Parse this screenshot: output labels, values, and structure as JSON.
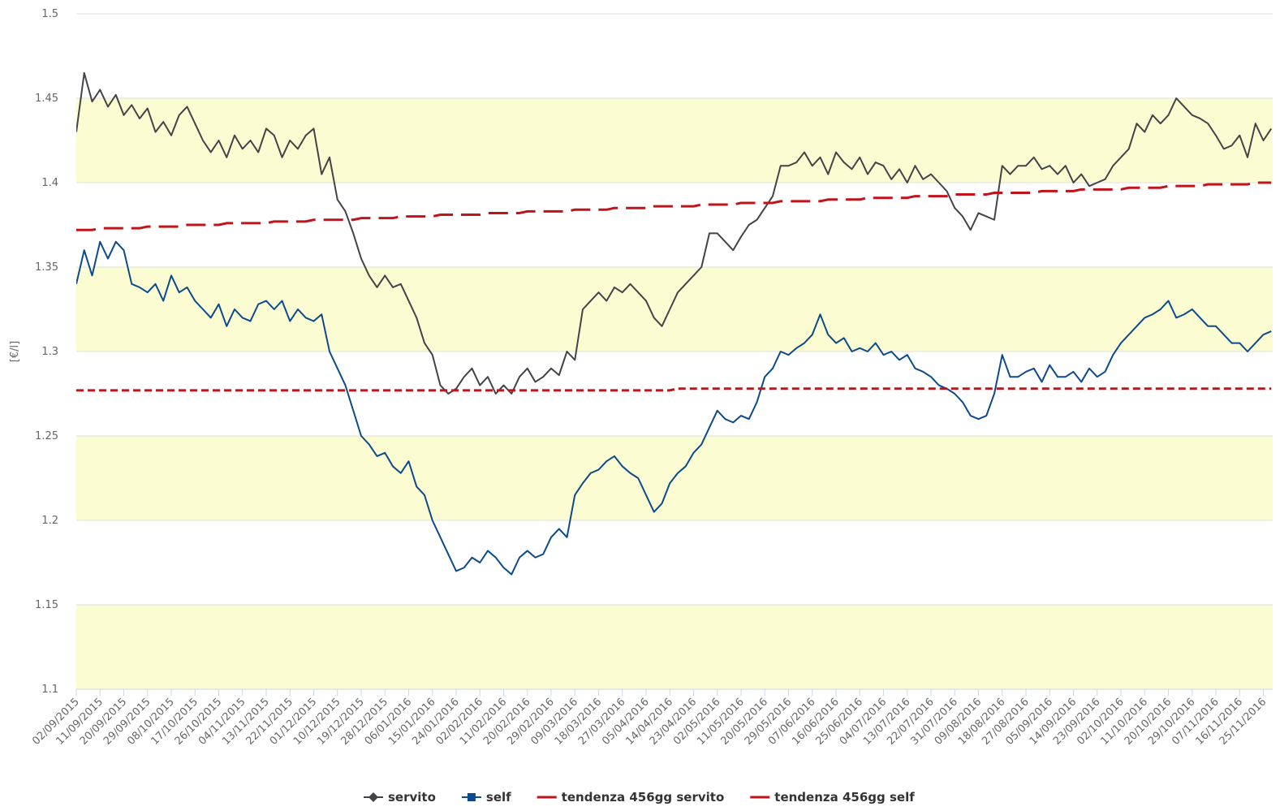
{
  "chart_data": {
    "type": "line",
    "y_label": "[€/l]",
    "ylim": [
      1.1,
      1.5
    ],
    "yticks": [
      1.1,
      1.15,
      1.2,
      1.25,
      1.3,
      1.35,
      1.4,
      1.45,
      1.5
    ],
    "grid": true,
    "alternate_band_color": "#fcfcd2",
    "legend": "bottom",
    "categories": [
      "02/09/2015",
      null,
      null,
      "11/09/2015",
      null,
      null,
      "20/09/2015",
      null,
      null,
      "29/09/2015",
      null,
      null,
      "08/10/2015",
      null,
      null,
      "17/10/2015",
      null,
      null,
      "26/10/2015",
      null,
      null,
      "04/11/2015",
      null,
      null,
      "13/11/2015",
      null,
      null,
      "22/11/2015",
      null,
      null,
      "01/12/2015",
      null,
      null,
      "10/12/2015",
      null,
      null,
      "19/12/2015",
      null,
      null,
      "28/12/2015",
      null,
      null,
      "06/01/2016",
      null,
      null,
      "15/01/2016",
      null,
      null,
      "24/01/2016",
      null,
      null,
      "02/02/2016",
      null,
      null,
      "11/02/2016",
      null,
      null,
      "20/02/2016",
      null,
      null,
      "29/02/2016",
      null,
      null,
      "09/03/2016",
      null,
      null,
      "18/03/2016",
      null,
      null,
      "27/03/2016",
      null,
      null,
      "05/04/2016",
      null,
      null,
      "14/04/2016",
      null,
      null,
      "23/04/2016",
      null,
      null,
      "02/05/2016",
      null,
      null,
      "11/05/2016",
      null,
      null,
      "20/05/2016",
      null,
      null,
      "29/05/2016",
      null,
      null,
      "07/06/2016",
      null,
      null,
      "16/06/2016",
      null,
      null,
      "25/06/2016",
      null,
      null,
      "04/07/2016",
      null,
      null,
      "13/07/2016",
      null,
      null,
      "22/07/2016",
      null,
      null,
      "31/07/2016",
      null,
      null,
      "09/08/2016",
      null,
      null,
      "18/08/2016",
      null,
      null,
      "27/08/2016",
      null,
      null,
      "05/09/2016",
      null,
      null,
      "14/09/2016",
      null,
      null,
      "23/09/2016",
      null,
      null,
      "02/10/2016",
      null,
      null,
      "11/10/2016",
      null,
      null,
      "20/10/2016",
      null,
      null,
      "29/10/2016",
      null,
      null,
      "07/11/2016",
      null,
      null,
      "16/11/2016",
      null,
      null,
      "25/11/2016",
      null
    ],
    "series": [
      {
        "name": "servito",
        "color": "#434348",
        "marker": "diamond",
        "dash": "solid",
        "values": [
          1.43,
          1.465,
          1.448,
          1.455,
          1.445,
          1.452,
          1.44,
          1.446,
          1.438,
          1.444,
          1.43,
          1.436,
          1.428,
          1.44,
          1.445,
          1.435,
          1.425,
          1.418,
          1.425,
          1.415,
          1.428,
          1.42,
          1.425,
          1.418,
          1.432,
          1.428,
          1.415,
          1.425,
          1.42,
          1.428,
          1.432,
          1.405,
          1.415,
          1.39,
          1.383,
          1.37,
          1.355,
          1.345,
          1.338,
          1.345,
          1.338,
          1.34,
          1.33,
          1.32,
          1.305,
          1.298,
          1.28,
          1.275,
          1.278,
          1.285,
          1.29,
          1.28,
          1.285,
          1.275,
          1.28,
          1.275,
          1.285,
          1.29,
          1.282,
          1.285,
          1.29,
          1.286,
          1.3,
          1.295,
          1.325,
          1.33,
          1.335,
          1.33,
          1.338,
          1.335,
          1.34,
          1.335,
          1.33,
          1.32,
          1.315,
          1.325,
          1.335,
          1.34,
          1.345,
          1.35,
          1.37,
          1.37,
          1.365,
          1.36,
          1.368,
          1.375,
          1.378,
          1.385,
          1.392,
          1.41,
          1.41,
          1.412,
          1.418,
          1.41,
          1.415,
          1.405,
          1.418,
          1.412,
          1.408,
          1.415,
          1.405,
          1.412,
          1.41,
          1.402,
          1.408,
          1.4,
          1.41,
          1.402,
          1.405,
          1.4,
          1.395,
          1.385,
          1.38,
          1.372,
          1.382,
          1.38,
          1.378,
          1.41,
          1.405,
          1.41,
          1.41,
          1.415,
          1.408,
          1.41,
          1.405,
          1.41,
          1.4,
          1.405,
          1.398,
          1.4,
          1.402,
          1.41,
          1.415,
          1.42,
          1.435,
          1.43,
          1.44,
          1.435,
          1.44,
          1.45,
          1.445,
          1.44,
          1.438,
          1.435,
          1.428,
          1.42,
          1.422,
          1.428,
          1.415,
          1.435,
          1.425,
          1.432
        ]
      },
      {
        "name": "self",
        "color": "#0d4a8c",
        "marker": "square",
        "dash": "solid",
        "values": [
          1.34,
          1.36,
          1.345,
          1.365,
          1.355,
          1.365,
          1.36,
          1.34,
          1.338,
          1.335,
          1.34,
          1.33,
          1.345,
          1.335,
          1.338,
          1.33,
          1.325,
          1.32,
          1.328,
          1.315,
          1.325,
          1.32,
          1.318,
          1.328,
          1.33,
          1.325,
          1.33,
          1.318,
          1.325,
          1.32,
          1.318,
          1.322,
          1.3,
          1.29,
          1.28,
          1.265,
          1.25,
          1.245,
          1.238,
          1.24,
          1.232,
          1.228,
          1.235,
          1.22,
          1.215,
          1.2,
          1.19,
          1.18,
          1.17,
          1.172,
          1.178,
          1.175,
          1.182,
          1.178,
          1.172,
          1.168,
          1.178,
          1.182,
          1.178,
          1.18,
          1.19,
          1.195,
          1.19,
          1.215,
          1.222,
          1.228,
          1.23,
          1.235,
          1.238,
          1.232,
          1.228,
          1.225,
          1.215,
          1.205,
          1.21,
          1.222,
          1.228,
          1.232,
          1.24,
          1.245,
          1.255,
          1.265,
          1.26,
          1.258,
          1.262,
          1.26,
          1.27,
          1.285,
          1.29,
          1.3,
          1.298,
          1.302,
          1.305,
          1.31,
          1.322,
          1.31,
          1.305,
          1.308,
          1.3,
          1.302,
          1.3,
          1.305,
          1.298,
          1.3,
          1.295,
          1.298,
          1.29,
          1.288,
          1.285,
          1.28,
          1.278,
          1.275,
          1.27,
          1.262,
          1.26,
          1.262,
          1.275,
          1.298,
          1.285,
          1.285,
          1.288,
          1.29,
          1.282,
          1.292,
          1.285,
          1.285,
          1.288,
          1.282,
          1.29,
          1.285,
          1.288,
          1.298,
          1.305,
          1.31,
          1.315,
          1.32,
          1.322,
          1.325,
          1.33,
          1.32,
          1.322,
          1.325,
          1.32,
          1.315,
          1.315,
          1.31,
          1.305,
          1.305,
          1.3,
          1.305,
          1.31,
          1.312
        ]
      },
      {
        "name": "tendenza 456gg servito",
        "color": "#c0141a",
        "marker": "line",
        "dash": "longdash",
        "values": [
          1.372,
          1.372,
          1.372,
          1.373,
          1.373,
          1.373,
          1.373,
          1.373,
          1.373,
          1.374,
          1.374,
          1.374,
          1.374,
          1.374,
          1.375,
          1.375,
          1.375,
          1.375,
          1.375,
          1.376,
          1.376,
          1.376,
          1.376,
          1.376,
          1.376,
          1.377,
          1.377,
          1.377,
          1.377,
          1.377,
          1.378,
          1.378,
          1.378,
          1.378,
          1.378,
          1.378,
          1.379,
          1.379,
          1.379,
          1.379,
          1.379,
          1.38,
          1.38,
          1.38,
          1.38,
          1.38,
          1.381,
          1.381,
          1.381,
          1.381,
          1.381,
          1.381,
          1.382,
          1.382,
          1.382,
          1.382,
          1.382,
          1.383,
          1.383,
          1.383,
          1.383,
          1.383,
          1.383,
          1.384,
          1.384,
          1.384,
          1.384,
          1.384,
          1.385,
          1.385,
          1.385,
          1.385,
          1.385,
          1.386,
          1.386,
          1.386,
          1.386,
          1.386,
          1.386,
          1.387,
          1.387,
          1.387,
          1.387,
          1.387,
          1.388,
          1.388,
          1.388,
          1.388,
          1.388,
          1.389,
          1.389,
          1.389,
          1.389,
          1.389,
          1.389,
          1.39,
          1.39,
          1.39,
          1.39,
          1.39,
          1.391,
          1.391,
          1.391,
          1.391,
          1.391,
          1.391,
          1.392,
          1.392,
          1.392,
          1.392,
          1.392,
          1.393,
          1.393,
          1.393,
          1.393,
          1.393,
          1.394,
          1.394,
          1.394,
          1.394,
          1.394,
          1.394,
          1.395,
          1.395,
          1.395,
          1.395,
          1.395,
          1.396,
          1.396,
          1.396,
          1.396,
          1.396,
          1.396,
          1.397,
          1.397,
          1.397,
          1.397,
          1.397,
          1.398,
          1.398,
          1.398,
          1.398,
          1.398,
          1.399,
          1.399,
          1.399,
          1.399,
          1.399,
          1.399,
          1.4,
          1.4,
          1.4
        ]
      },
      {
        "name": "tendenza 456gg self",
        "color": "#c0141a",
        "marker": "line",
        "dash": "shortdash",
        "values": [
          1.277,
          1.277,
          1.277,
          1.277,
          1.277,
          1.277,
          1.277,
          1.277,
          1.277,
          1.277,
          1.277,
          1.277,
          1.277,
          1.277,
          1.277,
          1.277,
          1.277,
          1.277,
          1.277,
          1.277,
          1.277,
          1.277,
          1.277,
          1.277,
          1.277,
          1.277,
          1.277,
          1.277,
          1.277,
          1.277,
          1.277,
          1.277,
          1.277,
          1.277,
          1.277,
          1.277,
          1.277,
          1.277,
          1.277,
          1.277,
          1.277,
          1.277,
          1.277,
          1.277,
          1.277,
          1.277,
          1.277,
          1.277,
          1.277,
          1.277,
          1.277,
          1.277,
          1.277,
          1.277,
          1.277,
          1.277,
          1.277,
          1.277,
          1.277,
          1.277,
          1.277,
          1.277,
          1.277,
          1.277,
          1.277,
          1.277,
          1.277,
          1.277,
          1.277,
          1.277,
          1.277,
          1.277,
          1.277,
          1.277,
          1.277,
          1.277,
          1.278,
          1.278,
          1.278,
          1.278,
          1.278,
          1.278,
          1.278,
          1.278,
          1.278,
          1.278,
          1.278,
          1.278,
          1.278,
          1.278,
          1.278,
          1.278,
          1.278,
          1.278,
          1.278,
          1.278,
          1.278,
          1.278,
          1.278,
          1.278,
          1.278,
          1.278,
          1.278,
          1.278,
          1.278,
          1.278,
          1.278,
          1.278,
          1.278,
          1.278,
          1.278,
          1.278,
          1.278,
          1.278,
          1.278,
          1.278,
          1.278,
          1.278,
          1.278,
          1.278,
          1.278,
          1.278,
          1.278,
          1.278,
          1.278,
          1.278,
          1.278,
          1.278,
          1.278,
          1.278,
          1.278,
          1.278,
          1.278,
          1.278,
          1.278,
          1.278,
          1.278,
          1.278,
          1.278,
          1.278,
          1.278,
          1.278,
          1.278,
          1.278,
          1.278,
          1.278,
          1.278,
          1.278,
          1.278,
          1.278,
          1.278,
          1.278
        ]
      }
    ]
  }
}
